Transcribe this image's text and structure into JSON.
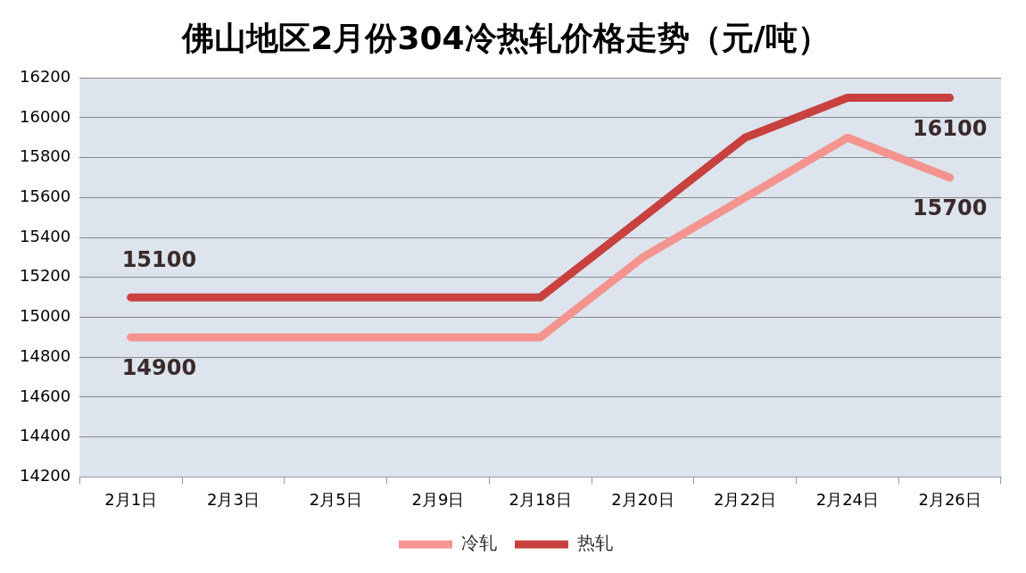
{
  "chart_data": {
    "type": "line",
    "title": "佛山地区2月份304冷热轧价格走势（元/吨）",
    "categories": [
      "2月1日",
      "2月3日",
      "2月5日",
      "2月9日",
      "2月18日",
      "2月20日",
      "2月22日",
      "2月24日",
      "2月26日"
    ],
    "series": [
      {
        "name": "冷轧",
        "color": "#f4948f",
        "values": [
          14900,
          14900,
          14900,
          14900,
          14900,
          15300,
          15600,
          15900,
          15700
        ],
        "value_labels": [
          "14900",
          null,
          null,
          null,
          null,
          null,
          null,
          null,
          "15700"
        ]
      },
      {
        "name": "热轧",
        "color": "#c8413f",
        "values": [
          15100,
          15100,
          15100,
          15100,
          15100,
          15500,
          15900,
          16100,
          16100
        ],
        "value_labels": [
          "15100",
          null,
          null,
          null,
          null,
          null,
          null,
          null,
          "16100"
        ]
      }
    ],
    "ylim": [
      14200,
      16200
    ],
    "yticks": [
      14200,
      14400,
      14600,
      14800,
      15000,
      15200,
      15400,
      15600,
      15800,
      16000,
      16200
    ],
    "grid": "y",
    "legend": "bottom",
    "marker": "none",
    "line_style": "solid"
  }
}
